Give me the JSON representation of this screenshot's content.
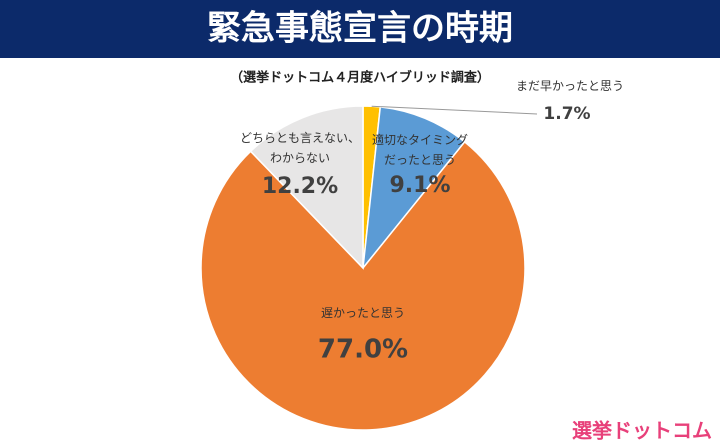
{
  "chart_data": {
    "type": "pie",
    "title": "緊急事態宣言の時期",
    "subtitle": "（選挙ドットコム４月度ハイブリッド調査）",
    "categories": [
      "まだ早かったと思う",
      "適切なタイミング\nだったと思う",
      "遅かったと思う",
      "どちらとも言えない、\nわからない"
    ],
    "values": [
      1.7,
      9.1,
      77.0,
      12.2
    ],
    "value_labels": [
      "1.7%",
      "9.1%",
      "77.0%",
      "12.2%"
    ],
    "colors": [
      "#FFC000",
      "#5B9BD5",
      "#ED7D31",
      "#E7E6E6"
    ]
  },
  "logo": "選挙ドットコム"
}
